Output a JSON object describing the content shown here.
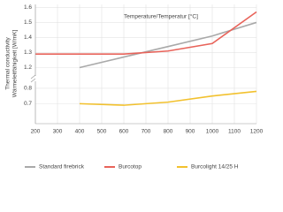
{
  "chart_data": {
    "type": "line",
    "x_label": "Temperature/Temperatur [°C]",
    "y_label": [
      "Thermal conductivity",
      "Wärmeleitfähigkeit [W/mK]"
    ],
    "x": [
      200,
      400,
      600,
      800,
      1000,
      1200
    ],
    "xlim": [
      200,
      1200
    ],
    "xticks": [
      200,
      300,
      400,
      500,
      600,
      700,
      800,
      900,
      1000,
      1100,
      1200
    ],
    "y_segments": [
      {
        "ylim": [
          0.57,
          0.84
        ],
        "yticks": [
          0.7,
          0.8
        ]
      },
      {
        "ylim": [
          1.15,
          1.62
        ],
        "yticks": [
          1.2,
          1.3,
          1.4,
          1.5,
          1.6
        ]
      }
    ],
    "grid": true,
    "legend": "bottom",
    "series": [
      {
        "name": "Standard firebrick",
        "color": "#a9a9a9",
        "values": [
          null,
          1.2,
          1.27,
          1.34,
          1.41,
          1.5
        ]
      },
      {
        "name": "Burcotop",
        "color": "#e8635a",
        "values": [
          1.29,
          1.29,
          1.29,
          1.31,
          1.36,
          1.57
        ]
      },
      {
        "name": "Burcolight 14/25 H",
        "color": "#f2c12e",
        "values": [
          null,
          0.7,
          0.69,
          0.71,
          0.75,
          0.78
        ]
      }
    ]
  }
}
